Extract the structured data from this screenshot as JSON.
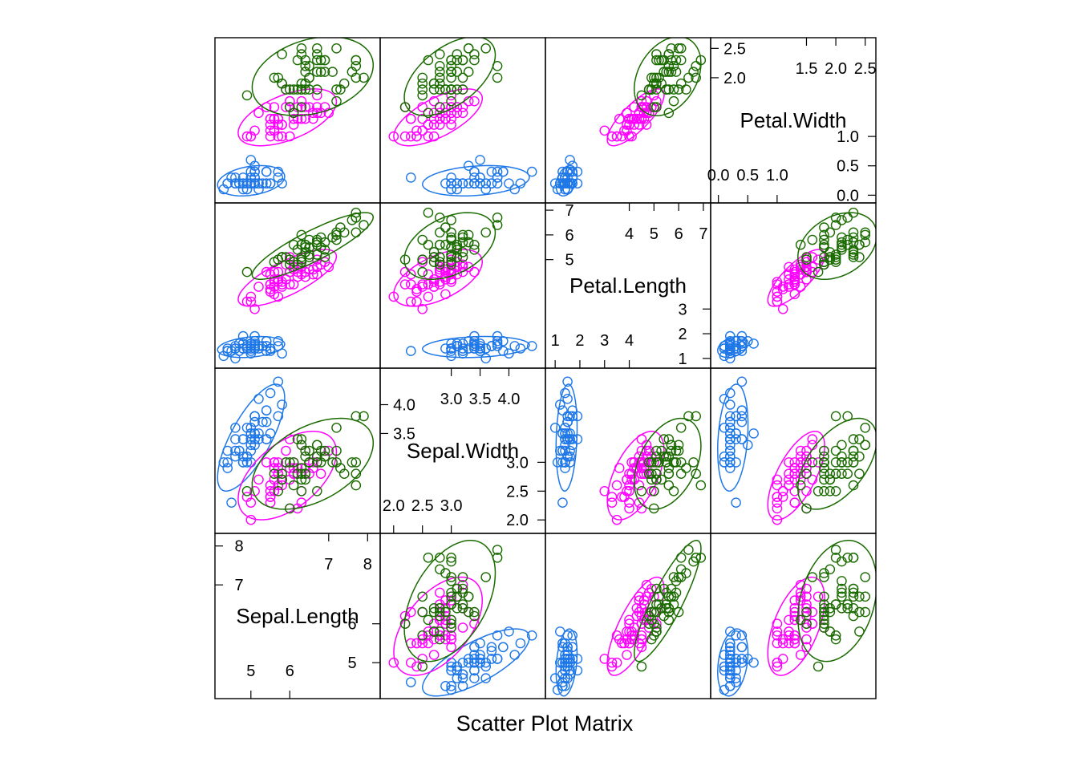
{
  "chart_data": {
    "type": "scatter",
    "variant": "scatter-plot-matrix",
    "xlabel": "Scatter Plot Matrix",
    "variables": [
      "Sepal.Length",
      "Sepal.Width",
      "Petal.Length",
      "Petal.Width"
    ],
    "ranges": {
      "Sepal.Length": [
        4.2,
        8.2
      ],
      "Sepal.Width": [
        1.85,
        4.55
      ],
      "Petal.Length": [
        0.8,
        7.1
      ],
      "Petal.Width": [
        -0.05,
        2.6
      ]
    },
    "diagonal_ticks": {
      "Sepal.Length": {
        "low": [
          "5",
          "6"
        ],
        "high": [
          "7",
          "8"
        ],
        "inner_high": [
          "7",
          "8"
        ],
        "inner_low": [
          "5",
          "6"
        ]
      },
      "Sepal.Width": {
        "low": [
          "2.0",
          "2.5",
          "3.0"
        ],
        "high": [
          "3.0",
          "3.5",
          "4.0"
        ],
        "inner_high": [
          "3.5",
          "4.0"
        ],
        "inner_low": [
          "2.0",
          "2.5",
          "3.0"
        ]
      },
      "Petal.Length": {
        "low": [
          "1",
          "2",
          "3",
          "4"
        ],
        "high": [
          "4",
          "5",
          "6",
          "7"
        ],
        "inner_high": [
          "5",
          "6",
          "7"
        ],
        "inner_low": [
          "1",
          "2",
          "3"
        ]
      },
      "Petal.Width": {
        "low": [
          "0.0",
          "0.5",
          "1.0"
        ],
        "high": [
          "1.5",
          "2.0",
          "2.5"
        ],
        "inner_high": [
          "2.0",
          "2.5"
        ],
        "inner_low": [
          "0.0",
          "0.5",
          "1.0"
        ]
      }
    },
    "ellipses": true,
    "series": [
      {
        "color": "#1f78e8",
        "points": [
          [
            5.1,
            3.5,
            1.4,
            0.2
          ],
          [
            4.9,
            3.0,
            1.4,
            0.2
          ],
          [
            4.7,
            3.2,
            1.3,
            0.2
          ],
          [
            4.6,
            3.1,
            1.5,
            0.2
          ],
          [
            5.0,
            3.6,
            1.4,
            0.2
          ],
          [
            5.4,
            3.9,
            1.7,
            0.4
          ],
          [
            4.6,
            3.4,
            1.4,
            0.3
          ],
          [
            5.0,
            3.4,
            1.5,
            0.2
          ],
          [
            4.4,
            2.9,
            1.4,
            0.2
          ],
          [
            4.9,
            3.1,
            1.5,
            0.1
          ],
          [
            5.4,
            3.7,
            1.5,
            0.2
          ],
          [
            4.8,
            3.4,
            1.6,
            0.2
          ],
          [
            4.8,
            3.0,
            1.4,
            0.1
          ],
          [
            4.3,
            3.0,
            1.1,
            0.1
          ],
          [
            5.8,
            4.0,
            1.2,
            0.2
          ],
          [
            5.7,
            4.4,
            1.5,
            0.4
          ],
          [
            5.4,
            3.9,
            1.3,
            0.4
          ],
          [
            5.1,
            3.5,
            1.4,
            0.3
          ],
          [
            5.7,
            3.8,
            1.7,
            0.3
          ],
          [
            5.1,
            3.8,
            1.5,
            0.3
          ],
          [
            5.4,
            3.4,
            1.7,
            0.2
          ],
          [
            5.1,
            3.7,
            1.5,
            0.4
          ],
          [
            4.6,
            3.6,
            1.0,
            0.2
          ],
          [
            5.1,
            3.3,
            1.7,
            0.5
          ],
          [
            4.8,
            3.4,
            1.9,
            0.2
          ],
          [
            5.0,
            3.0,
            1.6,
            0.2
          ],
          [
            5.0,
            3.4,
            1.6,
            0.4
          ],
          [
            5.2,
            3.5,
            1.5,
            0.2
          ],
          [
            5.2,
            3.4,
            1.4,
            0.2
          ],
          [
            4.7,
            3.2,
            1.6,
            0.2
          ],
          [
            4.8,
            3.1,
            1.6,
            0.2
          ],
          [
            5.4,
            3.4,
            1.5,
            0.4
          ],
          [
            5.2,
            4.1,
            1.5,
            0.1
          ],
          [
            5.5,
            4.2,
            1.4,
            0.2
          ],
          [
            4.9,
            3.1,
            1.5,
            0.2
          ],
          [
            5.0,
            3.2,
            1.2,
            0.2
          ],
          [
            5.5,
            3.5,
            1.3,
            0.2
          ],
          [
            4.9,
            3.6,
            1.4,
            0.1
          ],
          [
            4.4,
            3.0,
            1.3,
            0.2
          ],
          [
            5.1,
            3.4,
            1.5,
            0.2
          ],
          [
            5.0,
            3.5,
            1.3,
            0.3
          ],
          [
            4.5,
            2.3,
            1.3,
            0.3
          ],
          [
            4.4,
            3.2,
            1.3,
            0.2
          ],
          [
            5.0,
            3.5,
            1.6,
            0.6
          ],
          [
            5.1,
            3.8,
            1.9,
            0.4
          ],
          [
            4.8,
            3.0,
            1.4,
            0.3
          ],
          [
            5.1,
            3.8,
            1.6,
            0.2
          ],
          [
            4.6,
            3.2,
            1.4,
            0.2
          ],
          [
            5.3,
            3.7,
            1.5,
            0.2
          ],
          [
            5.0,
            3.3,
            1.4,
            0.2
          ]
        ]
      },
      {
        "color": "#ff00ff",
        "points": [
          [
            7.0,
            3.2,
            4.7,
            1.4
          ],
          [
            6.4,
            3.2,
            4.5,
            1.5
          ],
          [
            6.9,
            3.1,
            4.9,
            1.5
          ],
          [
            5.5,
            2.3,
            4.0,
            1.3
          ],
          [
            6.5,
            2.8,
            4.6,
            1.5
          ],
          [
            5.7,
            2.8,
            4.5,
            1.3
          ],
          [
            6.3,
            3.3,
            4.7,
            1.6
          ],
          [
            4.9,
            2.4,
            3.3,
            1.0
          ],
          [
            6.6,
            2.9,
            4.6,
            1.3
          ],
          [
            5.2,
            2.7,
            3.9,
            1.4
          ],
          [
            5.0,
            2.0,
            3.5,
            1.0
          ],
          [
            5.9,
            3.0,
            4.2,
            1.5
          ],
          [
            6.0,
            2.2,
            4.0,
            1.0
          ],
          [
            6.1,
            2.9,
            4.7,
            1.4
          ],
          [
            5.6,
            2.9,
            3.6,
            1.3
          ],
          [
            6.7,
            3.1,
            4.4,
            1.4
          ],
          [
            5.6,
            3.0,
            4.5,
            1.5
          ],
          [
            5.8,
            2.7,
            4.1,
            1.0
          ],
          [
            6.2,
            2.2,
            4.5,
            1.5
          ],
          [
            5.6,
            2.5,
            3.9,
            1.1
          ],
          [
            5.9,
            3.2,
            4.8,
            1.8
          ],
          [
            6.1,
            2.8,
            4.0,
            1.3
          ],
          [
            6.3,
            2.5,
            4.9,
            1.5
          ],
          [
            6.1,
            2.8,
            4.7,
            1.2
          ],
          [
            6.4,
            2.9,
            4.3,
            1.3
          ],
          [
            6.6,
            3.0,
            4.4,
            1.4
          ],
          [
            6.8,
            2.8,
            4.8,
            1.4
          ],
          [
            6.7,
            3.0,
            5.0,
            1.7
          ],
          [
            6.0,
            2.9,
            4.5,
            1.5
          ],
          [
            5.7,
            2.6,
            3.5,
            1.0
          ],
          [
            5.5,
            2.4,
            3.8,
            1.1
          ],
          [
            5.5,
            2.4,
            3.7,
            1.0
          ],
          [
            5.8,
            2.7,
            3.9,
            1.2
          ],
          [
            6.0,
            2.7,
            5.1,
            1.6
          ],
          [
            5.4,
            3.0,
            4.5,
            1.5
          ],
          [
            6.0,
            3.4,
            4.5,
            1.6
          ],
          [
            6.7,
            3.1,
            4.7,
            1.5
          ],
          [
            6.3,
            2.3,
            4.4,
            1.3
          ],
          [
            5.6,
            3.0,
            4.1,
            1.3
          ],
          [
            5.5,
            2.5,
            4.0,
            1.3
          ],
          [
            5.5,
            2.6,
            4.4,
            1.2
          ],
          [
            6.1,
            3.0,
            4.6,
            1.4
          ],
          [
            5.8,
            2.6,
            4.0,
            1.2
          ],
          [
            5.0,
            2.3,
            3.3,
            1.0
          ],
          [
            5.6,
            2.7,
            4.2,
            1.3
          ],
          [
            5.7,
            3.0,
            4.2,
            1.2
          ],
          [
            5.7,
            2.9,
            4.2,
            1.3
          ],
          [
            6.2,
            2.9,
            4.3,
            1.3
          ],
          [
            5.1,
            2.5,
            3.0,
            1.1
          ],
          [
            5.7,
            2.8,
            4.1,
            1.3
          ]
        ]
      },
      {
        "color": "#1a6b00",
        "points": [
          [
            6.3,
            3.3,
            6.0,
            2.5
          ],
          [
            5.8,
            2.7,
            5.1,
            1.9
          ],
          [
            7.1,
            3.0,
            5.9,
            2.1
          ],
          [
            6.3,
            2.9,
            5.6,
            1.8
          ],
          [
            6.5,
            3.0,
            5.8,
            2.2
          ],
          [
            7.6,
            3.0,
            6.6,
            2.1
          ],
          [
            4.9,
            2.5,
            4.5,
            1.7
          ],
          [
            7.3,
            2.9,
            6.3,
            1.8
          ],
          [
            6.7,
            2.5,
            5.8,
            1.8
          ],
          [
            7.2,
            3.6,
            6.1,
            2.5
          ],
          [
            6.5,
            3.2,
            5.1,
            2.0
          ],
          [
            6.4,
            2.7,
            5.3,
            1.9
          ],
          [
            6.8,
            3.0,
            5.5,
            2.1
          ],
          [
            5.7,
            2.5,
            5.0,
            2.0
          ],
          [
            5.8,
            2.8,
            5.1,
            2.4
          ],
          [
            6.4,
            3.2,
            5.3,
            2.3
          ],
          [
            6.5,
            3.0,
            5.5,
            1.8
          ],
          [
            7.7,
            3.8,
            6.7,
            2.2
          ],
          [
            7.7,
            2.6,
            6.9,
            2.3
          ],
          [
            6.0,
            2.2,
            5.0,
            1.5
          ],
          [
            6.9,
            3.2,
            5.7,
            2.3
          ],
          [
            5.6,
            2.8,
            4.9,
            2.0
          ],
          [
            7.7,
            2.8,
            6.7,
            2.0
          ],
          [
            6.3,
            2.7,
            4.9,
            1.8
          ],
          [
            6.7,
            3.3,
            5.7,
            2.1
          ],
          [
            7.2,
            3.2,
            6.0,
            1.8
          ],
          [
            6.2,
            2.8,
            4.8,
            1.8
          ],
          [
            6.1,
            3.0,
            4.9,
            1.8
          ],
          [
            6.4,
            2.8,
            5.6,
            2.1
          ],
          [
            7.2,
            3.0,
            5.8,
            1.6
          ],
          [
            7.4,
            2.8,
            6.1,
            1.9
          ],
          [
            7.9,
            3.8,
            6.4,
            2.0
          ],
          [
            6.4,
            2.8,
            5.6,
            2.2
          ],
          [
            6.3,
            2.8,
            5.1,
            1.5
          ],
          [
            6.1,
            2.6,
            5.6,
            1.4
          ],
          [
            7.7,
            3.0,
            6.1,
            2.3
          ],
          [
            6.3,
            3.4,
            5.6,
            2.4
          ],
          [
            6.4,
            3.1,
            5.5,
            1.8
          ],
          [
            6.0,
            3.0,
            4.8,
            1.8
          ],
          [
            6.9,
            3.1,
            5.4,
            2.1
          ],
          [
            6.7,
            3.1,
            5.6,
            2.4
          ],
          [
            6.9,
            3.1,
            5.1,
            2.3
          ],
          [
            5.8,
            2.7,
            5.1,
            1.9
          ],
          [
            6.8,
            3.2,
            5.9,
            2.3
          ],
          [
            6.7,
            3.3,
            5.7,
            2.5
          ],
          [
            6.7,
            3.0,
            5.2,
            2.3
          ],
          [
            6.3,
            2.5,
            5.0,
            1.9
          ],
          [
            6.5,
            3.0,
            5.2,
            2.0
          ],
          [
            6.2,
            3.4,
            5.4,
            2.3
          ],
          [
            5.9,
            3.0,
            5.1,
            1.8
          ]
        ]
      }
    ]
  }
}
